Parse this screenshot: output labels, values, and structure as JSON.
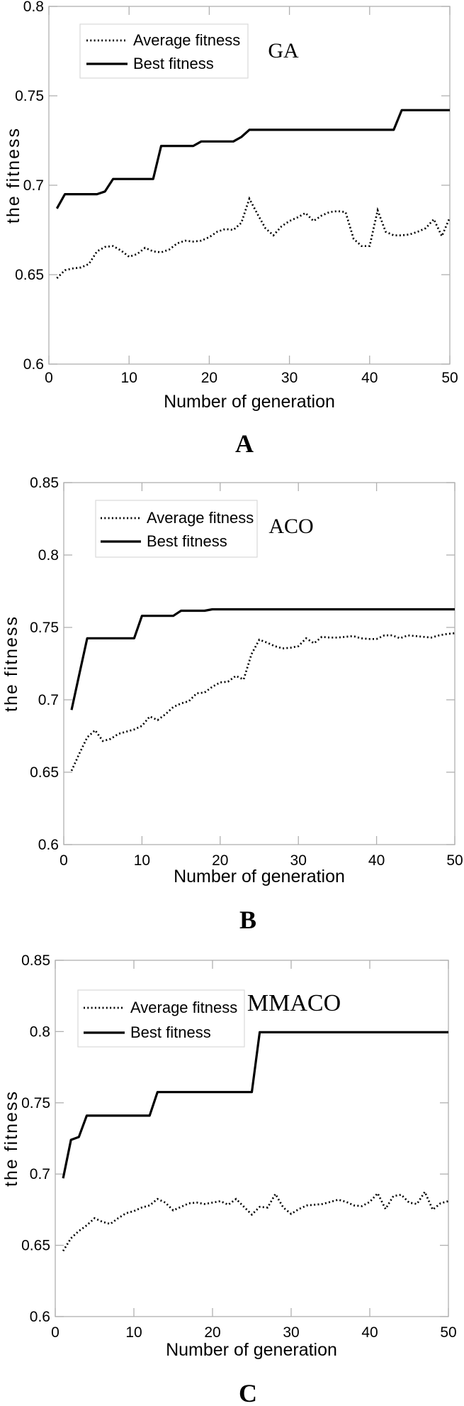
{
  "page": {
    "background": "#ffffff",
    "text_color": "#000000",
    "axis_color": "#b0b0b0",
    "line_color": "#000000"
  },
  "chart_data": [
    {
      "type": "line",
      "id": "A",
      "title": "GA",
      "caption": "A",
      "xlabel": "Number of generation",
      "ylabel": "the fitness",
      "xlim": [
        0,
        50
      ],
      "ylim": [
        0.6,
        0.8
      ],
      "grid": false,
      "legend_position": "upper-left-inside",
      "x_ticks": [
        0,
        10,
        20,
        30,
        40,
        50
      ],
      "x_tick_labels": [
        "0",
        "10",
        "20",
        "30",
        "40",
        "50"
      ],
      "y_ticks": [
        0.8,
        0.75,
        0.7,
        0.65,
        0.6
      ],
      "y_tick_labels": [
        "0.8",
        "0.75",
        "0.7",
        "0.65",
        "0.6"
      ],
      "legend": {
        "average_label": "Average fitness",
        "best_label": "Best fitness"
      },
      "x": [
        1,
        2,
        3,
        4,
        5,
        6,
        7,
        8,
        9,
        10,
        11,
        12,
        13,
        14,
        15,
        16,
        17,
        18,
        19,
        20,
        21,
        22,
        23,
        24,
        25,
        26,
        27,
        28,
        29,
        30,
        31,
        32,
        33,
        34,
        35,
        36,
        37,
        38,
        39,
        40,
        41,
        42,
        43,
        44,
        45,
        46,
        47,
        48,
        49,
        50
      ],
      "series": [
        {
          "name": "Average fitness",
          "style": "dotted",
          "values": [
            0.648,
            0.6525,
            0.6535,
            0.654,
            0.656,
            0.663,
            0.6655,
            0.666,
            0.6635,
            0.66,
            0.6615,
            0.665,
            0.663,
            0.6625,
            0.664,
            0.6675,
            0.669,
            0.6685,
            0.669,
            0.671,
            0.674,
            0.6755,
            0.675,
            0.679,
            0.6925,
            0.684,
            0.676,
            0.672,
            0.677,
            0.68,
            0.682,
            0.6845,
            0.68,
            0.683,
            0.685,
            0.6855,
            0.685,
            0.67,
            0.666,
            0.666,
            0.686,
            0.674,
            0.672,
            0.672,
            0.6725,
            0.674,
            0.676,
            0.681,
            0.6715,
            0.682
          ]
        },
        {
          "name": "Best fitness",
          "style": "solid",
          "values": [
            0.687,
            0.695,
            0.695,
            0.695,
            0.695,
            0.695,
            0.6965,
            0.7035,
            0.7035,
            0.7035,
            0.7035,
            0.7035,
            0.7035,
            0.722,
            0.722,
            0.722,
            0.722,
            0.722,
            0.7245,
            0.7245,
            0.7245,
            0.7245,
            0.7245,
            0.727,
            0.731,
            0.731,
            0.731,
            0.731,
            0.731,
            0.731,
            0.731,
            0.731,
            0.731,
            0.731,
            0.731,
            0.731,
            0.731,
            0.731,
            0.731,
            0.731,
            0.731,
            0.731,
            0.731,
            0.742,
            0.742,
            0.742,
            0.742,
            0.742,
            0.742,
            0.742
          ]
        }
      ]
    },
    {
      "type": "line",
      "id": "B",
      "title": "ACO",
      "caption": "B",
      "xlabel": "Number of generation",
      "ylabel": "the fitness",
      "xlim": [
        0,
        50
      ],
      "ylim": [
        0.6,
        0.85
      ],
      "grid": false,
      "legend_position": "upper-left-inside",
      "x_ticks": [
        0,
        10,
        20,
        30,
        40,
        50
      ],
      "x_tick_labels": [
        "0",
        "10",
        "20",
        "30",
        "40",
        "50"
      ],
      "y_ticks": [
        0.85,
        0.8,
        0.75,
        0.7,
        0.65,
        0.6
      ],
      "y_tick_labels": [
        "0.85",
        "0.8",
        "0.75",
        "0.7",
        "0.65",
        "0.6"
      ],
      "legend": {
        "average_label": "Average fitness",
        "best_label": "Best fitness"
      },
      "x": [
        1,
        2,
        3,
        4,
        5,
        6,
        7,
        8,
        9,
        10,
        11,
        12,
        13,
        14,
        15,
        16,
        17,
        18,
        19,
        20,
        21,
        22,
        23,
        24,
        25,
        26,
        27,
        28,
        29,
        30,
        31,
        32,
        33,
        34,
        35,
        36,
        37,
        38,
        39,
        40,
        41,
        42,
        43,
        44,
        45,
        46,
        47,
        48,
        49,
        50
      ],
      "series": [
        {
          "name": "Average fitness",
          "style": "dotted",
          "values": [
            0.651,
            0.663,
            0.674,
            0.679,
            0.6715,
            0.673,
            0.6765,
            0.678,
            0.6795,
            0.682,
            0.6885,
            0.686,
            0.69,
            0.695,
            0.6975,
            0.699,
            0.7045,
            0.705,
            0.709,
            0.712,
            0.7125,
            0.7165,
            0.714,
            0.7315,
            0.7415,
            0.7395,
            0.737,
            0.7355,
            0.736,
            0.737,
            0.7425,
            0.739,
            0.7435,
            0.743,
            0.743,
            0.7435,
            0.744,
            0.7425,
            0.742,
            0.742,
            0.7445,
            0.7445,
            0.7425,
            0.7445,
            0.744,
            0.7435,
            0.743,
            0.7445,
            0.7455,
            0.746
          ]
        },
        {
          "name": "Best fitness",
          "style": "solid",
          "values": [
            0.693,
            0.718,
            0.7425,
            0.7425,
            0.7425,
            0.7425,
            0.7425,
            0.7425,
            0.7425,
            0.758,
            0.758,
            0.758,
            0.758,
            0.758,
            0.7615,
            0.7615,
            0.7615,
            0.7615,
            0.7625,
            0.7625,
            0.7625,
            0.7625,
            0.7625,
            0.7625,
            0.7625,
            0.7625,
            0.7625,
            0.7625,
            0.7625,
            0.7625,
            0.7625,
            0.7625,
            0.7625,
            0.7625,
            0.7625,
            0.7625,
            0.7625,
            0.7625,
            0.7625,
            0.7625,
            0.7625,
            0.7625,
            0.7625,
            0.7625,
            0.7625,
            0.7625,
            0.7625,
            0.7625,
            0.7625,
            0.7625
          ]
        }
      ]
    },
    {
      "type": "line",
      "id": "C",
      "title": "MMACO",
      "caption": "C",
      "xlabel": "Number of generation",
      "ylabel": "the fitness",
      "xlim": [
        0,
        50
      ],
      "ylim": [
        0.6,
        0.85
      ],
      "grid": false,
      "legend_position": "upper-left-inside",
      "x_ticks": [
        0,
        10,
        20,
        30,
        40,
        50
      ],
      "x_tick_labels": [
        "0",
        "10",
        "20",
        "30",
        "40",
        "50"
      ],
      "y_ticks": [
        0.85,
        0.8,
        0.75,
        0.7,
        0.65,
        0.6
      ],
      "y_tick_labels": [
        "0.85",
        "0.8",
        "0.75",
        "0.7",
        "0.65",
        "0.6"
      ],
      "legend": {
        "average_label": "Average fitness",
        "best_label": "Best fitness"
      },
      "x": [
        1,
        2,
        3,
        4,
        5,
        6,
        7,
        8,
        9,
        10,
        11,
        12,
        13,
        14,
        15,
        16,
        17,
        18,
        19,
        20,
        21,
        22,
        23,
        24,
        25,
        26,
        27,
        28,
        29,
        30,
        31,
        32,
        33,
        34,
        35,
        36,
        37,
        38,
        39,
        40,
        41,
        42,
        43,
        44,
        45,
        46,
        47,
        48,
        49,
        50
      ],
      "series": [
        {
          "name": "Average fitness",
          "style": "dotted",
          "values": [
            0.646,
            0.655,
            0.66,
            0.664,
            0.669,
            0.6665,
            0.665,
            0.669,
            0.6725,
            0.674,
            0.6765,
            0.678,
            0.6825,
            0.68,
            0.6745,
            0.677,
            0.6795,
            0.68,
            0.679,
            0.68,
            0.681,
            0.6785,
            0.6825,
            0.677,
            0.6715,
            0.677,
            0.6765,
            0.686,
            0.6765,
            0.672,
            0.6755,
            0.678,
            0.6785,
            0.679,
            0.6805,
            0.682,
            0.6805,
            0.678,
            0.6775,
            0.6805,
            0.6865,
            0.6755,
            0.6845,
            0.6855,
            0.68,
            0.679,
            0.6875,
            0.675,
            0.6795,
            0.681
          ]
        },
        {
          "name": "Best fitness",
          "style": "solid",
          "values": [
            0.697,
            0.724,
            0.726,
            0.741,
            0.741,
            0.741,
            0.741,
            0.741,
            0.741,
            0.741,
            0.741,
            0.741,
            0.7575,
            0.7575,
            0.7575,
            0.7575,
            0.7575,
            0.7575,
            0.7575,
            0.7575,
            0.7575,
            0.7575,
            0.7575,
            0.7575,
            0.7575,
            0.7995,
            0.7995,
            0.7995,
            0.7995,
            0.7995,
            0.7995,
            0.7995,
            0.7995,
            0.7995,
            0.7995,
            0.7995,
            0.7995,
            0.7995,
            0.7995,
            0.7995,
            0.7995,
            0.7995,
            0.7995,
            0.7995,
            0.7995,
            0.7995,
            0.7995,
            0.7995,
            0.7995,
            0.7995
          ]
        }
      ]
    }
  ]
}
